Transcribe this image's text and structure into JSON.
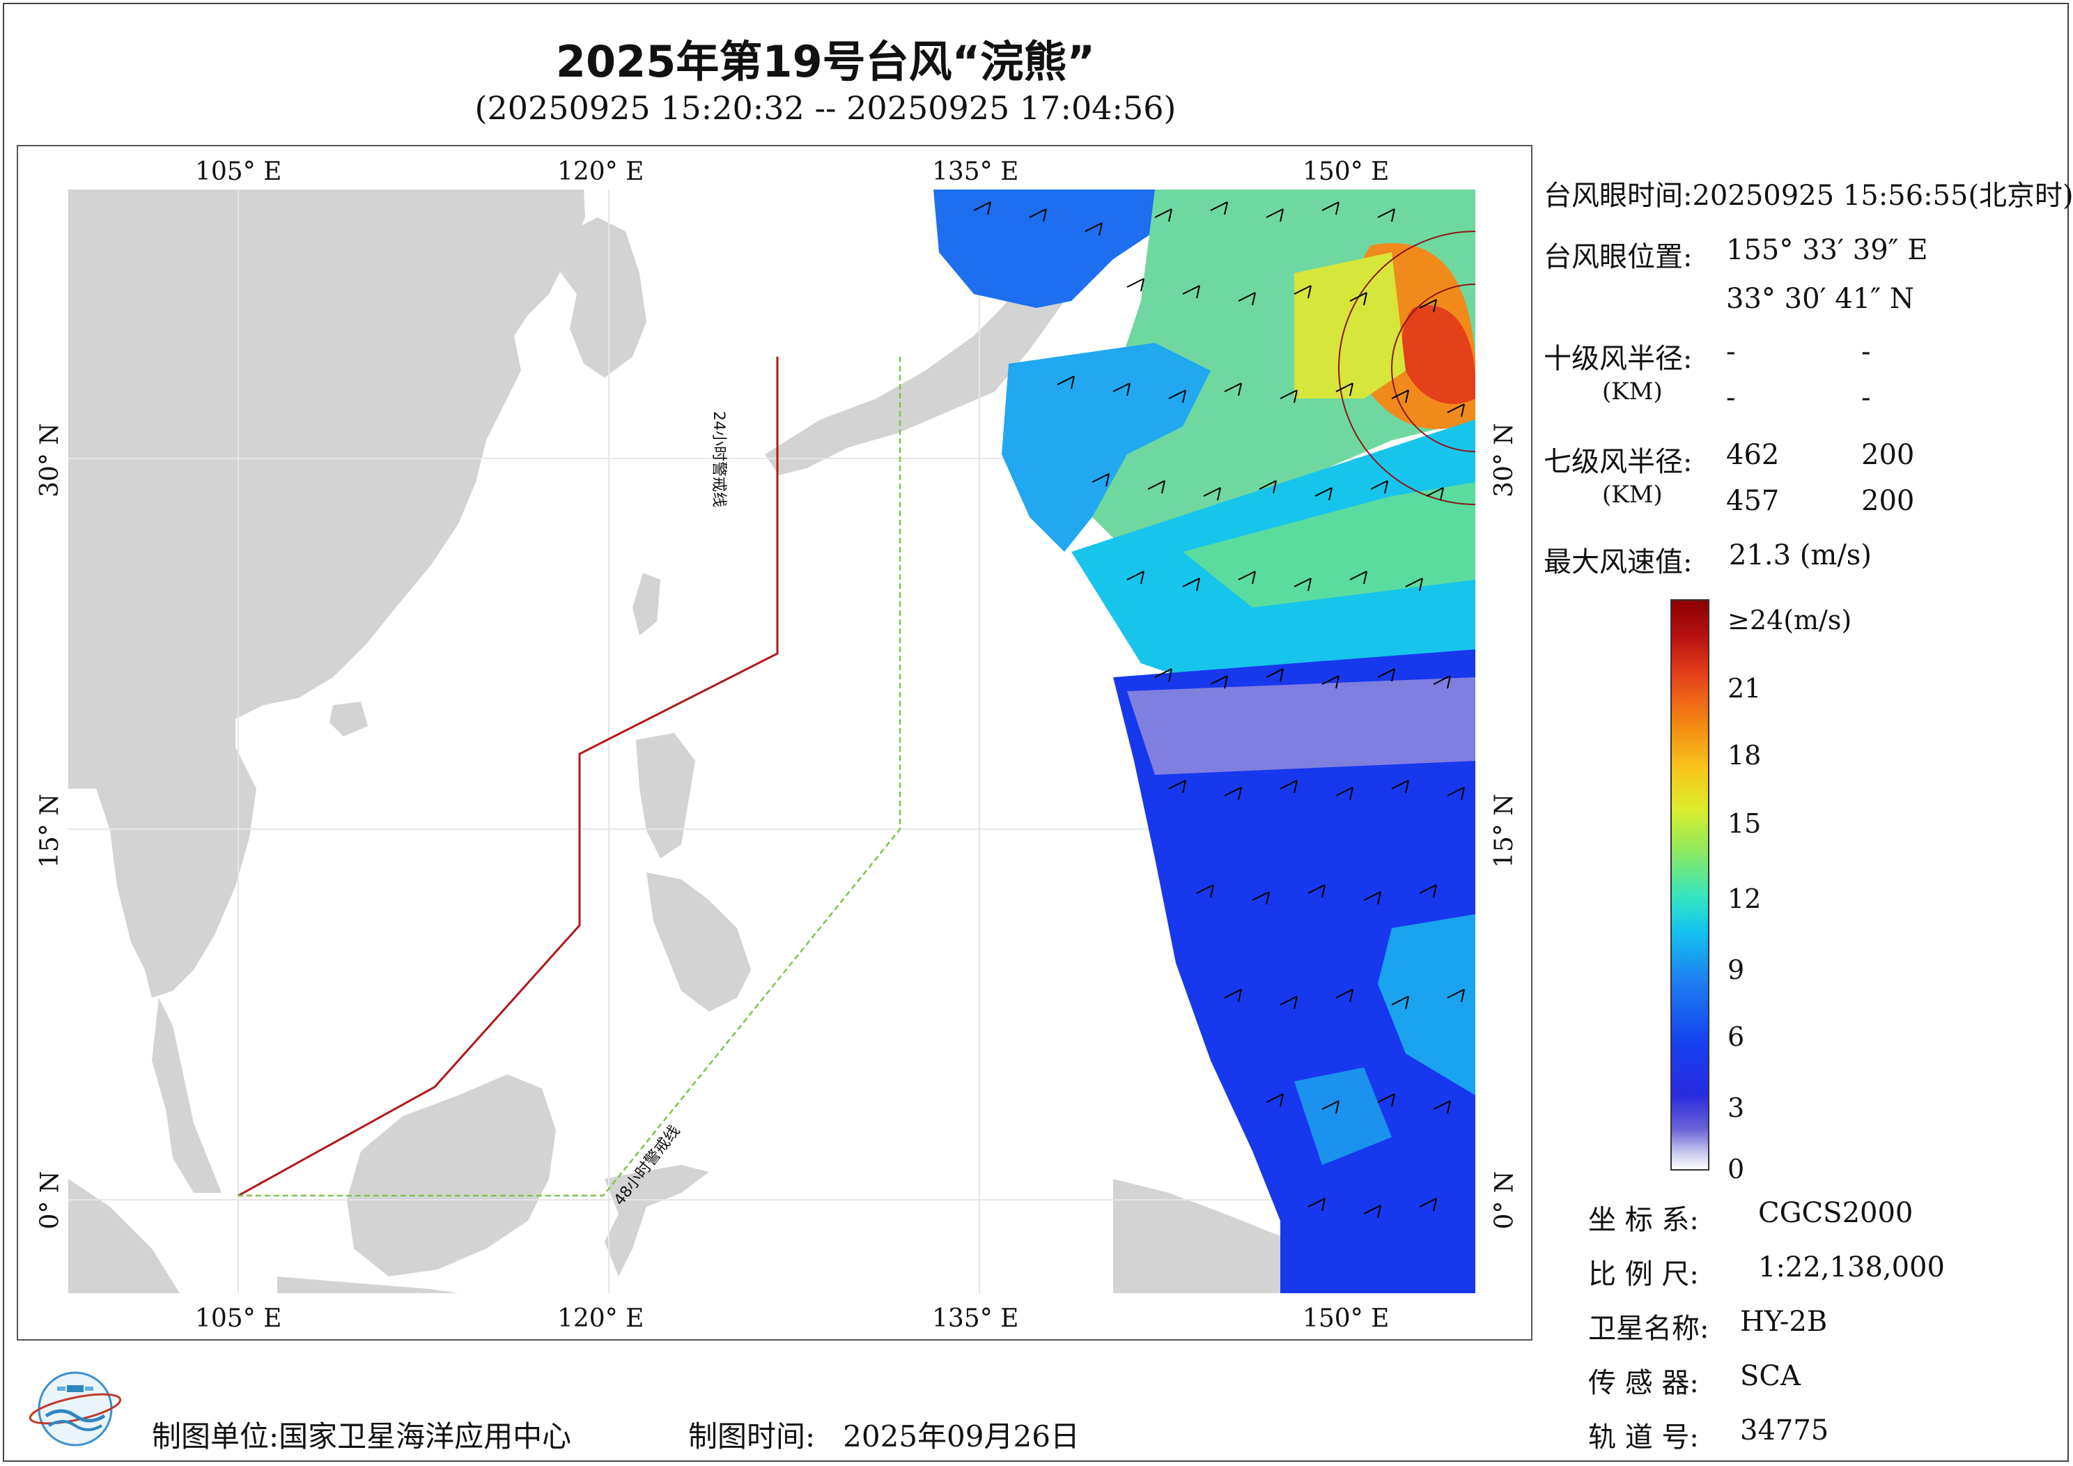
{
  "title": "2025年第19号台风“浣熊”",
  "subtitle": "(20250925 15:20:32 -- 20250925 17:04:56)",
  "map": {
    "lon_labels": [
      "105° E",
      "120° E",
      "135° E",
      "150° E"
    ],
    "lat_labels": [
      "30° N",
      "15° N",
      "0° N"
    ],
    "warning_line_24h": "24小时警戒线",
    "warning_line_48h": "48小时警戒线",
    "colors": {
      "land": "#d3d3d3",
      "ocean": "#ffffff",
      "line_24h": "#b01818",
      "line_48h": "#7cc34c",
      "wind_barb": "#000000"
    }
  },
  "info": {
    "eye_time_label": "台风眼时间:",
    "eye_time_value": "20250925 15:56:55(北京时)",
    "eye_pos_label": "台风眼位置:",
    "eye_lon": "155° 33′ 39″ E",
    "eye_lat": "33° 30′ 41″ N",
    "r10_label": "十级风半径:",
    "r10_unit": "(KM)",
    "r10_values": [
      "-",
      "-",
      "-",
      "-"
    ],
    "r7_label": "七级风半径:",
    "r7_unit": "(KM)",
    "r7_values": [
      "462",
      "200",
      "457",
      "200"
    ],
    "max_wind_label": "最大风速值:",
    "max_wind_value": "21.3  (m/s)"
  },
  "colorbar": {
    "top_label": "≥24(m/s)",
    "ticks": [
      "21",
      "18",
      "15",
      "12",
      "9",
      "6",
      "3",
      "0"
    ]
  },
  "meta": {
    "crs_label": "坐 标 系:",
    "crs_value": "CGCS2000",
    "scale_label": "比 例 尺:",
    "scale_value": "1:22,138,000",
    "sat_label": "卫星名称:",
    "sat_value": "HY-2B",
    "sensor_label": "传 感 器:",
    "sensor_value": "SCA",
    "orbit_label": "轨 道 号:",
    "orbit_value": "34775"
  },
  "footer": {
    "org_label": "制图单位:",
    "org_value": "国家卫星海洋应用中心",
    "time_label": "制图时间:",
    "time_value": "2025年09月26日"
  },
  "logo": {
    "icon": "nsoas-logo-icon"
  }
}
